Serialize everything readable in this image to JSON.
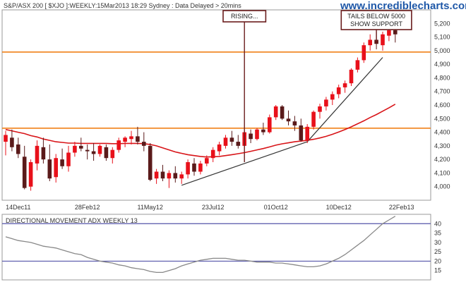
{
  "header": {
    "title": "S&P/ASX 200 [ $XJO ]:WEEKLY:15Mar2013 18:29 Sydney : Data Delayed > 20mins",
    "site": "www.incrediblecharts.com"
  },
  "chart_data": [
    {
      "type": "candlestick",
      "title": "S&P/ASX 200 [ $XJO ]:WEEKLY:15Mar2013 18:29 Sydney : Data Delayed > 20mins",
      "ylim": [
        3900,
        5300
      ],
      "y_ticks": [
        4000,
        4100,
        4200,
        4300,
        4400,
        4500,
        4600,
        4700,
        4800,
        4900,
        5000,
        5100,
        5200
      ],
      "y_tick_labels": [
        "4,000",
        "4,100",
        "4,200",
        "4,300",
        "4,400",
        "4,500",
        "4,600",
        "4,700",
        "4,800",
        "4,900",
        "5,000",
        "5,100",
        "5,200"
      ],
      "x_tick_labels": [
        "14Dec11",
        "28Feb12",
        "11May12",
        "23Jul12",
        "01Oct12",
        "10Dec12",
        "22Feb13"
      ],
      "x_tick_index": [
        2,
        13,
        23,
        33,
        43,
        53,
        63
      ],
      "colors": {
        "up": "#e8101a",
        "down": "#5a1a1a",
        "ma": "#d81418",
        "support": "#f08018",
        "trend": "#333333",
        "annotation_border": "#6a1c1c"
      },
      "horizontal_lines": [
        4990,
        4430
      ],
      "candles": [
        {
          "o": 4330,
          "h": 4410,
          "l": 4230,
          "c": 4380
        },
        {
          "o": 4360,
          "h": 4420,
          "l": 4260,
          "c": 4290
        },
        {
          "o": 4310,
          "h": 4360,
          "l": 4210,
          "c": 4240
        },
        {
          "o": 4220,
          "h": 4300,
          "l": 3980,
          "c": 3990
        },
        {
          "o": 4000,
          "h": 4200,
          "l": 3970,
          "c": 4180
        },
        {
          "o": 4170,
          "h": 4340,
          "l": 4120,
          "c": 4300
        },
        {
          "o": 4290,
          "h": 4360,
          "l": 4170,
          "c": 4200
        },
        {
          "o": 4200,
          "h": 4310,
          "l": 4040,
          "c": 4060
        },
        {
          "o": 4070,
          "h": 4240,
          "l": 4030,
          "c": 4210
        },
        {
          "o": 4200,
          "h": 4280,
          "l": 4130,
          "c": 4150
        },
        {
          "o": 4150,
          "h": 4300,
          "l": 4110,
          "c": 4250
        },
        {
          "o": 4250,
          "h": 4330,
          "l": 4220,
          "c": 4300
        },
        {
          "o": 4300,
          "h": 4360,
          "l": 4260,
          "c": 4280
        },
        {
          "o": 4270,
          "h": 4310,
          "l": 4200,
          "c": 4260
        },
        {
          "o": 4260,
          "h": 4320,
          "l": 4190,
          "c": 4240
        },
        {
          "o": 4240,
          "h": 4310,
          "l": 4220,
          "c": 4300
        },
        {
          "o": 4290,
          "h": 4310,
          "l": 4190,
          "c": 4210
        },
        {
          "o": 4210,
          "h": 4290,
          "l": 4170,
          "c": 4270
        },
        {
          "o": 4270,
          "h": 4360,
          "l": 4250,
          "c": 4340
        },
        {
          "o": 4330,
          "h": 4370,
          "l": 4290,
          "c": 4360
        },
        {
          "o": 4350,
          "h": 4410,
          "l": 4310,
          "c": 4370
        },
        {
          "o": 4370,
          "h": 4440,
          "l": 4310,
          "c": 4330
        },
        {
          "o": 4330,
          "h": 4400,
          "l": 4260,
          "c": 4300
        },
        {
          "o": 4300,
          "h": 4320,
          "l": 4040,
          "c": 4050
        },
        {
          "o": 4060,
          "h": 4130,
          "l": 4020,
          "c": 4110
        },
        {
          "o": 4110,
          "h": 4160,
          "l": 4040,
          "c": 4060
        },
        {
          "o": 4060,
          "h": 4120,
          "l": 3990,
          "c": 4100
        },
        {
          "o": 4100,
          "h": 4150,
          "l": 4030,
          "c": 4060
        },
        {
          "o": 4060,
          "h": 4110,
          "l": 4020,
          "c": 4090
        },
        {
          "o": 4090,
          "h": 4200,
          "l": 4060,
          "c": 4180
        },
        {
          "o": 4170,
          "h": 4210,
          "l": 4080,
          "c": 4110
        },
        {
          "o": 4110,
          "h": 4190,
          "l": 4090,
          "c": 4170
        },
        {
          "o": 4170,
          "h": 4230,
          "l": 4150,
          "c": 4210
        },
        {
          "o": 4210,
          "h": 4290,
          "l": 4180,
          "c": 4270
        },
        {
          "o": 4260,
          "h": 4330,
          "l": 4230,
          "c": 4310
        },
        {
          "o": 4300,
          "h": 4380,
          "l": 4280,
          "c": 4360
        },
        {
          "o": 4360,
          "h": 4410,
          "l": 4300,
          "c": 4330
        },
        {
          "o": 4330,
          "h": 4380,
          "l": 4280,
          "c": 4300
        },
        {
          "o": 4300,
          "h": 4420,
          "l": 4280,
          "c": 4400
        },
        {
          "o": 4390,
          "h": 4420,
          "l": 4320,
          "c": 4350
        },
        {
          "o": 4350,
          "h": 4430,
          "l": 4340,
          "c": 4420
        },
        {
          "o": 4420,
          "h": 4470,
          "l": 4380,
          "c": 4400
        },
        {
          "o": 4400,
          "h": 4530,
          "l": 4390,
          "c": 4510
        },
        {
          "o": 4510,
          "h": 4600,
          "l": 4490,
          "c": 4590
        },
        {
          "o": 4590,
          "h": 4600,
          "l": 4490,
          "c": 4500
        },
        {
          "o": 4500,
          "h": 4560,
          "l": 4450,
          "c": 4480
        },
        {
          "o": 4480,
          "h": 4520,
          "l": 4410,
          "c": 4450
        },
        {
          "o": 4450,
          "h": 4500,
          "l": 4330,
          "c": 4340
        },
        {
          "o": 4340,
          "h": 4460,
          "l": 4320,
          "c": 4440
        },
        {
          "o": 4440,
          "h": 4560,
          "l": 4420,
          "c": 4550
        },
        {
          "o": 4550,
          "h": 4610,
          "l": 4500,
          "c": 4590
        },
        {
          "o": 4590,
          "h": 4660,
          "l": 4560,
          "c": 4640
        },
        {
          "o": 4640,
          "h": 4700,
          "l": 4600,
          "c": 4680
        },
        {
          "o": 4680,
          "h": 4750,
          "l": 4650,
          "c": 4730
        },
        {
          "o": 4730,
          "h": 4780,
          "l": 4690,
          "c": 4760
        },
        {
          "o": 4760,
          "h": 4870,
          "l": 4740,
          "c": 4860
        },
        {
          "o": 4860,
          "h": 4950,
          "l": 4840,
          "c": 4930
        },
        {
          "o": 4930,
          "h": 5060,
          "l": 4910,
          "c": 5040
        },
        {
          "o": 5040,
          "h": 5120,
          "l": 5000,
          "c": 5080
        },
        {
          "o": 5080,
          "h": 5140,
          "l": 5010,
          "c": 5050
        },
        {
          "o": 5040,
          "h": 5140,
          "l": 5000,
          "c": 5120
        },
        {
          "o": 5110,
          "h": 5170,
          "l": 5070,
          "c": 5150
        },
        {
          "o": 5150,
          "h": 5180,
          "l": 5060,
          "c": 5120
        }
      ],
      "moving_average": [
        4420,
        4410,
        4400,
        4390,
        4375,
        4365,
        4350,
        4340,
        4330,
        4325,
        4320,
        4320,
        4318,
        4318,
        4318,
        4318,
        4318,
        4316,
        4316,
        4318,
        4318,
        4318,
        4316,
        4310,
        4300,
        4285,
        4270,
        4255,
        4245,
        4235,
        4228,
        4222,
        4218,
        4220,
        4222,
        4228,
        4235,
        4242,
        4250,
        4260,
        4270,
        4280,
        4292,
        4305,
        4315,
        4322,
        4330,
        4335,
        4340,
        4348,
        4358,
        4370,
        4385,
        4402,
        4420,
        4440,
        4462,
        4484,
        4508,
        4530,
        4555,
        4580,
        4606
      ],
      "trendlines": [
        {
          "from": {
            "i": 28,
            "v": 4010
          },
          "to": {
            "i": 48,
            "v": 4330
          }
        },
        {
          "from": {
            "i": 48,
            "v": 4330
          },
          "to": {
            "i": 60,
            "v": 4950
          }
        }
      ],
      "annotations": [
        {
          "text": [
            "RISING..."
          ],
          "i": 38,
          "v": 4180
        },
        {
          "text": [
            "TAILS BELOW 5000",
            "SHOW SUPPORT"
          ],
          "i": 59,
          "v": 5060
        }
      ]
    },
    {
      "type": "line",
      "title": "DIRECTIONAL MOVEMENT ADX WEEKLY 13",
      "ylim": [
        10,
        45
      ],
      "y_ticks": [
        15,
        20,
        25,
        30,
        35,
        40
      ],
      "y_tick_labels": [
        "15",
        "20",
        "25",
        "30",
        "35",
        "40"
      ],
      "horizontal_lines": [
        40,
        20
      ],
      "colors": {
        "line": "#888888",
        "guide": "#5555aa"
      },
      "values": [
        33,
        32,
        31,
        30.5,
        30,
        29,
        28,
        27.5,
        27,
        26,
        25,
        24,
        23.5,
        22,
        21,
        20,
        19.5,
        19,
        18,
        17.5,
        16.5,
        16,
        15.5,
        14.5,
        14,
        14,
        15,
        16,
        17.5,
        18.5,
        19.5,
        20.5,
        21,
        21.5,
        21.5,
        21.5,
        21,
        20.5,
        20.5,
        20,
        19.5,
        19.5,
        19.5,
        19,
        19,
        18.5,
        18,
        17.5,
        17,
        17,
        17.5,
        18.5,
        20,
        21.5,
        23.5,
        26,
        28.5,
        31,
        34,
        37,
        40,
        42,
        44
      ]
    }
  ]
}
